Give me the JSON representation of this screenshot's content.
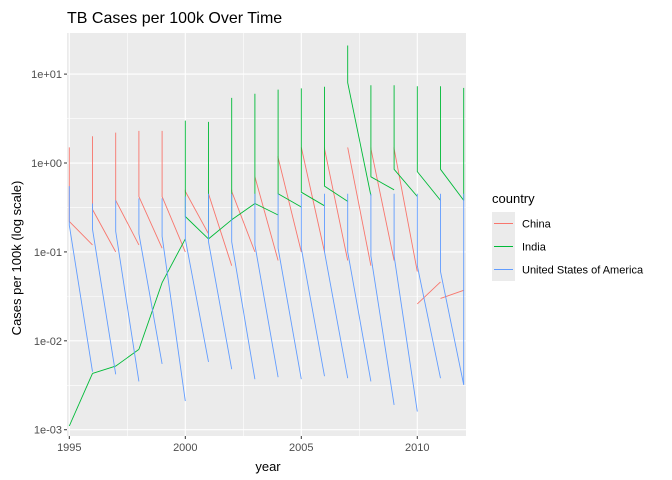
{
  "chart_data": {
    "type": "line",
    "title": "TB Cases per 100k Over Time",
    "xlabel": "year",
    "ylabel": "Cases per 100k (log scale)",
    "y_scale": "log10",
    "xlim": [
      1994.9,
      2012.1
    ],
    "ylim": [
      0.00085,
      0.029
    ],
    "ylim_note_unused": "",
    "x_ticks": [
      1995,
      2000,
      2005,
      2010
    ],
    "x_tick_labels": [
      "1995",
      "2000",
      "2005",
      "2010"
    ],
    "y_ticks": [
      0.001,
      0.01,
      0.1,
      1,
      10
    ],
    "y_tick_labels": [
      "1e-03",
      "1e-02",
      "1e-01",
      "1e+00",
      "1e+01"
    ],
    "grid": true,
    "panel_background": "#ebebeb",
    "legend": {
      "title": "country",
      "placement": "right"
    },
    "series": [
      {
        "name": "China",
        "color": "#f8766d",
        "segments": [
          {
            "x": [
              1995,
              1995,
              1996
            ],
            "y": [
              1.5,
              0.22,
              0.12
            ]
          },
          {
            "x": [
              1996,
              1996,
              1997
            ],
            "y": [
              2.0,
              0.3,
              0.1
            ]
          },
          {
            "x": [
              1997,
              1997,
              1998
            ],
            "y": [
              2.2,
              0.38,
              0.12
            ]
          },
          {
            "x": [
              1998,
              1998,
              1999
            ],
            "y": [
              2.3,
              0.42,
              0.11
            ]
          },
          {
            "x": [
              1999,
              1999,
              2000
            ],
            "y": [
              2.3,
              0.42,
              0.1
            ]
          },
          {
            "x": [
              2000,
              2000,
              2001
            ],
            "y": [
              0.5,
              0.48,
              0.16
            ]
          },
          {
            "x": [
              2001,
              2001,
              2002
            ],
            "y": [
              0.5,
              0.45,
              0.07
            ]
          },
          {
            "x": [
              2002,
              2002,
              2003
            ],
            "y": [
              0.5,
              0.48,
              0.1
            ]
          },
          {
            "x": [
              2003,
              2003,
              2004
            ],
            "y": [
              0.7,
              0.7,
              0.08
            ]
          },
          {
            "x": [
              2004,
              2004,
              2005
            ],
            "y": [
              1.2,
              1.15,
              0.1
            ]
          },
          {
            "x": [
              2005,
              2005,
              2006
            ],
            "y": [
              1.5,
              1.5,
              0.1
            ]
          },
          {
            "x": [
              2006,
              2006,
              2007
            ],
            "y": [
              1.5,
              1.45,
              0.08
            ]
          },
          {
            "x": [
              2007,
              2007,
              2008
            ],
            "y": [
              1.5,
              1.5,
              0.07
            ]
          },
          {
            "x": [
              2008,
              2008,
              2009
            ],
            "y": [
              1.5,
              1.45,
              0.08
            ]
          },
          {
            "x": [
              2009,
              2009,
              2010
            ],
            "y": [
              1.5,
              1.45,
              0.06
            ]
          },
          {
            "x": [
              2010,
              2010,
              2011
            ],
            "y": [
              0.026,
              0.026,
              0.046
            ]
          },
          {
            "x": [
              2011,
              2011,
              2012
            ],
            "y": [
              0.03,
              0.03,
              0.037
            ]
          }
        ]
      },
      {
        "name": "India",
        "color": "#00ba38",
        "segments": [
          {
            "x": [
              1995,
              1995,
              1996
            ],
            "y": [
              0.0011,
              0.0011,
              0.0043
            ]
          },
          {
            "x": [
              1996,
              1997,
              1998
            ],
            "y": [
              0.0043,
              0.0052,
              0.008
            ]
          },
          {
            "x": [
              1998,
              1999,
              2000
            ],
            "y": [
              0.008,
              0.045,
              0.14
            ]
          },
          {
            "x": [
              2000,
              2000,
              2001
            ],
            "y": [
              3.0,
              0.25,
              0.14
            ]
          },
          {
            "x": [
              2001,
              2001,
              2002
            ],
            "y": [
              2.9,
              0.14,
              0.23
            ]
          },
          {
            "x": [
              2002,
              2002,
              2003
            ],
            "y": [
              5.4,
              0.23,
              0.35
            ]
          },
          {
            "x": [
              2003,
              2003,
              2004
            ],
            "y": [
              6.0,
              0.35,
              0.26
            ]
          },
          {
            "x": [
              2004,
              2004,
              2005
            ],
            "y": [
              6.7,
              0.45,
              0.32
            ]
          },
          {
            "x": [
              2005,
              2005,
              2006
            ],
            "y": [
              6.9,
              0.47,
              0.33
            ]
          },
          {
            "x": [
              2006,
              2006,
              2007
            ],
            "y": [
              7.2,
              0.55,
              0.37
            ]
          },
          {
            "x": [
              2007,
              2007,
              2008
            ],
            "y": [
              21.0,
              8.0,
              0.43
            ]
          },
          {
            "x": [
              2008,
              2008,
              2009
            ],
            "y": [
              7.5,
              0.7,
              0.5
            ]
          },
          {
            "x": [
              2009,
              2009,
              2010
            ],
            "y": [
              7.5,
              0.85,
              0.42
            ]
          },
          {
            "x": [
              2010,
              2010,
              2011
            ],
            "y": [
              7.3,
              0.8,
              0.38
            ]
          },
          {
            "x": [
              2011,
              2011,
              2012
            ],
            "y": [
              7.3,
              0.85,
              0.38
            ]
          },
          {
            "x": [
              2012,
              2012
            ],
            "y": [
              7.0,
              0.38
            ]
          }
        ]
      },
      {
        "name": "United States of America",
        "color": "#619cff",
        "segments": [
          {
            "x": [
              1995,
              1995,
              1996
            ],
            "y": [
              0.55,
              0.2,
              0.0045
            ]
          },
          {
            "x": [
              1996,
              1996,
              1997
            ],
            "y": [
              0.35,
              0.18,
              0.0042
            ]
          },
          {
            "x": [
              1997,
              1997,
              1998
            ],
            "y": [
              0.38,
              0.17,
              0.0035
            ]
          },
          {
            "x": [
              1998,
              1998,
              1999
            ],
            "y": [
              0.4,
              0.16,
              0.0055
            ]
          },
          {
            "x": [
              1999,
              1999,
              2000
            ],
            "y": [
              0.4,
              0.15,
              0.0021
            ]
          },
          {
            "x": [
              2000,
              2000,
              2001
            ],
            "y": [
              0.42,
              0.14,
              0.0058
            ]
          },
          {
            "x": [
              2001,
              2001,
              2002
            ],
            "y": [
              0.45,
              0.13,
              0.0048
            ]
          },
          {
            "x": [
              2002,
              2002,
              2003
            ],
            "y": [
              0.45,
              0.13,
              0.0037
            ]
          },
          {
            "x": [
              2003,
              2003,
              2004
            ],
            "y": [
              0.45,
              0.12,
              0.0039
            ]
          },
          {
            "x": [
              2004,
              2004,
              2005
            ],
            "y": [
              0.45,
              0.11,
              0.0037
            ]
          },
          {
            "x": [
              2005,
              2005,
              2006
            ],
            "y": [
              0.45,
              0.11,
              0.004
            ]
          },
          {
            "x": [
              2006,
              2006,
              2007
            ],
            "y": [
              0.45,
              0.1,
              0.0038
            ]
          },
          {
            "x": [
              2007,
              2007,
              2008
            ],
            "y": [
              0.45,
              0.1,
              0.0035
            ]
          },
          {
            "x": [
              2008,
              2008,
              2009
            ],
            "y": [
              0.45,
              0.09,
              0.0019
            ]
          },
          {
            "x": [
              2009,
              2009,
              2010
            ],
            "y": [
              0.45,
              0.09,
              0.0016
            ]
          },
          {
            "x": [
              2010,
              2010,
              2011
            ],
            "y": [
              0.45,
              0.07,
              0.0038
            ]
          },
          {
            "x": [
              2011,
              2011,
              2012
            ],
            "y": [
              0.45,
              0.06,
              0.0032
            ]
          },
          {
            "x": [
              2012,
              2012
            ],
            "y": [
              0.45,
              0.0032
            ]
          }
        ]
      }
    ]
  }
}
